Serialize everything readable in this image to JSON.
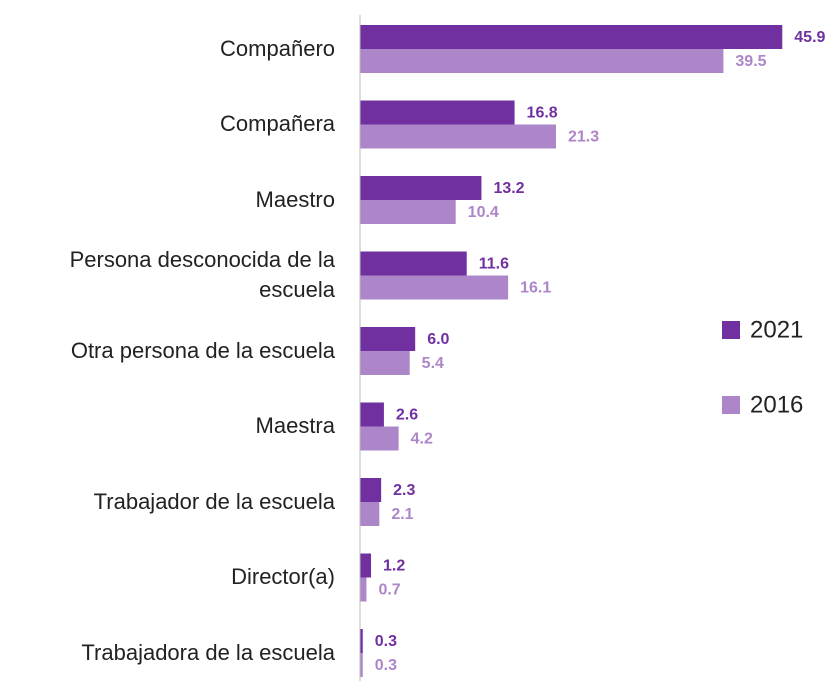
{
  "chart_data": {
    "type": "hbar",
    "categories": [
      "Compañero",
      "Compañera",
      "Maestro",
      "Persona desconocida de la escuela",
      "Otra persona de la escuela",
      "Maestra",
      "Trabajador de la escuela",
      "Director(a)",
      "Trabajadora de la escuela"
    ],
    "series": [
      {
        "name": "2021",
        "color": "#7030a0",
        "values": [
          45.9,
          16.8,
          13.2,
          11.6,
          6,
          2.6,
          2.3,
          1.2,
          0.3
        ],
        "value_labels": [
          "45.9",
          "16.8",
          "13.2",
          "11.6",
          "6.0",
          "2.6",
          "2.3",
          "1.2",
          "0.3"
        ]
      },
      {
        "name": "2016",
        "color": "#ad86c9",
        "values": [
          39.5,
          21.3,
          10.4,
          16.1,
          5.4,
          4.2,
          2.1,
          0.7,
          0.3
        ],
        "value_labels": [
          "39.5",
          "21.3",
          "10.4",
          "16.1",
          "5.4",
          "4.2",
          "2.1",
          "0.7",
          "0.3"
        ]
      }
    ],
    "xlim": [
      0,
      50
    ],
    "legend": "right"
  }
}
